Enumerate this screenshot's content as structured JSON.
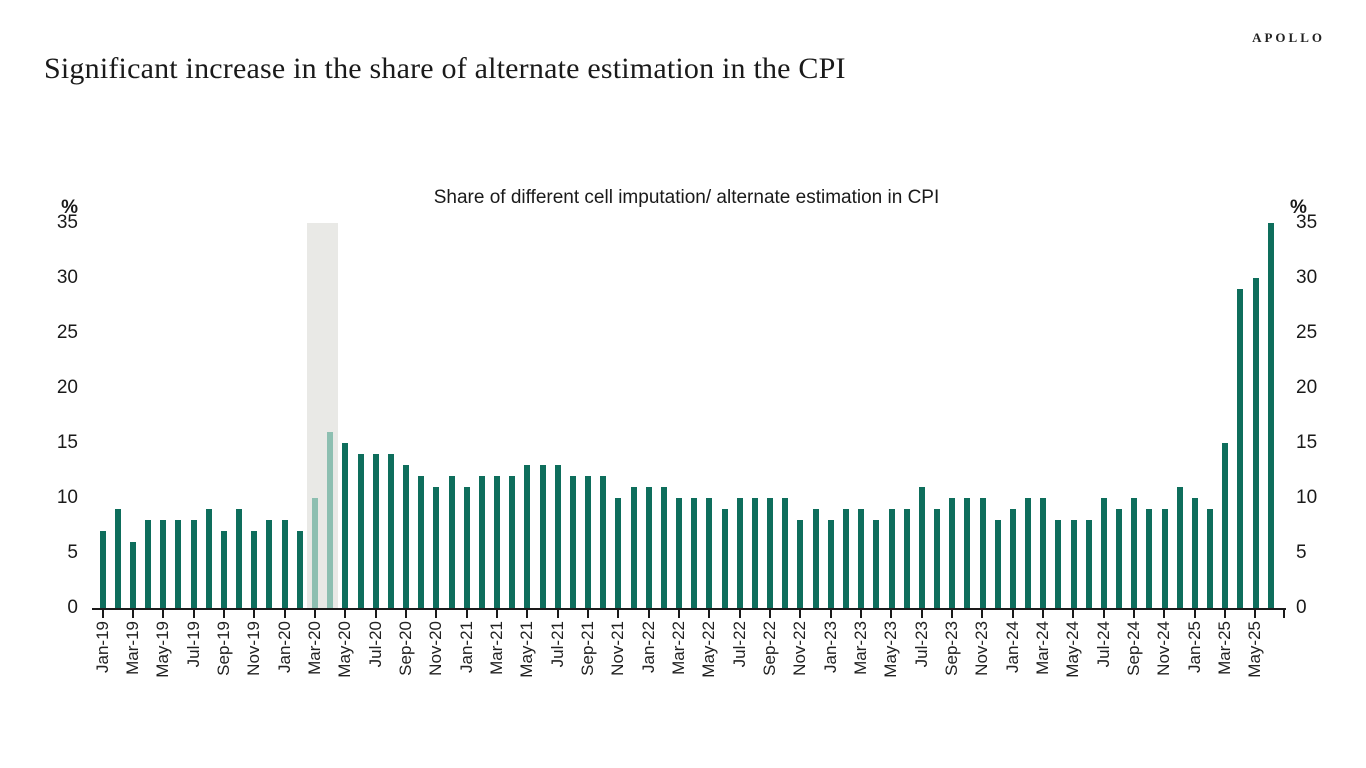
{
  "brand": {
    "logo_text": "APOLLO"
  },
  "header": {
    "title": "Significant increase in the share of alternate estimation in the CPI"
  },
  "chart_data": {
    "type": "bar",
    "title": "Share of different cell imputation/ alternate estimation in CPI",
    "unit": "%",
    "y_axis": {
      "min": 0,
      "max": 35,
      "ticks": [
        35,
        30,
        25,
        20,
        15,
        10,
        5,
        0
      ],
      "label_sides": "both",
      "grid": false
    },
    "x_axis": {
      "tick_label_every": 2,
      "label_rotation": "vertical"
    },
    "categories": [
      "Jan-19",
      "Feb-19",
      "Mar-19",
      "Apr-19",
      "May-19",
      "Jun-19",
      "Jul-19",
      "Aug-19",
      "Sep-19",
      "Oct-19",
      "Nov-19",
      "Dec-19",
      "Jan-20",
      "Feb-20",
      "Mar-20",
      "Apr-20",
      "May-20",
      "Jun-20",
      "Jul-20",
      "Aug-20",
      "Sep-20",
      "Oct-20",
      "Nov-20",
      "Dec-20",
      "Jan-21",
      "Feb-21",
      "Mar-21",
      "Apr-21",
      "May-21",
      "Jun-21",
      "Jul-21",
      "Aug-21",
      "Sep-21",
      "Oct-21",
      "Nov-21",
      "Dec-21",
      "Jan-22",
      "Feb-22",
      "Mar-22",
      "Apr-22",
      "May-22",
      "Jun-22",
      "Jul-22",
      "Aug-22",
      "Sep-22",
      "Oct-22",
      "Nov-22",
      "Dec-22",
      "Jan-23",
      "Feb-23",
      "Mar-23",
      "Apr-23",
      "May-23",
      "Jun-23",
      "Jul-23",
      "Aug-23",
      "Sep-23",
      "Oct-23",
      "Nov-23",
      "Dec-23",
      "Jan-24",
      "Feb-24",
      "Mar-24",
      "Apr-24",
      "May-24",
      "Jun-24",
      "Jul-24",
      "Aug-24",
      "Sep-24",
      "Oct-24",
      "Nov-24",
      "Dec-24",
      "Jan-25",
      "Feb-25",
      "Mar-25",
      "Apr-25",
      "May-25",
      "Jun-25"
    ],
    "values": [
      7,
      9,
      6,
      8,
      8,
      8,
      8,
      9,
      7,
      9,
      7,
      8,
      8,
      7,
      10,
      16,
      15,
      14,
      14,
      14,
      13,
      12,
      11,
      12,
      11,
      12,
      12,
      12,
      13,
      13,
      13,
      12,
      12,
      12,
      10,
      11,
      11,
      11,
      10,
      10,
      10,
      9,
      10,
      10,
      10,
      10,
      8,
      9,
      8,
      9,
      9,
      8,
      9,
      9,
      11,
      9,
      10,
      10,
      10,
      8,
      9,
      10,
      10,
      8,
      8,
      8,
      10,
      9,
      10,
      9,
      9,
      11,
      10,
      9,
      15,
      29,
      30,
      35
    ],
    "highlight": {
      "band_start_index": 14,
      "band_end_index": 15,
      "light_bar_indices": [
        14,
        15
      ]
    },
    "colors": {
      "bar": "#0e6e5c",
      "highlight_bar": "#8dbfb1",
      "band": "#e9e9e6",
      "axis": "#1a1a1a"
    }
  }
}
